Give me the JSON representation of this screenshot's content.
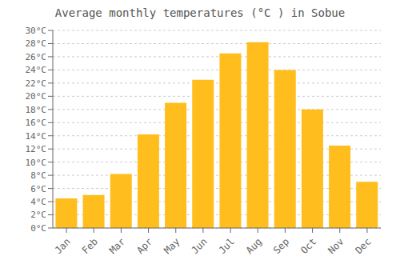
{
  "chart_data": {
    "type": "bar",
    "title": "Average monthly temperatures (°C ) in Sobue",
    "categories": [
      "Jan",
      "Feb",
      "Mar",
      "Apr",
      "May",
      "Jun",
      "Jul",
      "Aug",
      "Sep",
      "Oct",
      "Nov",
      "Dec"
    ],
    "values": [
      4.5,
      5.0,
      8.2,
      14.2,
      19.0,
      22.5,
      26.5,
      28.2,
      24.0,
      18.0,
      12.5,
      7.0
    ],
    "color": "#FFBE1E",
    "ylim": [
      0,
      30
    ],
    "yticks": [
      {
        "value": 0,
        "label": "0°C"
      },
      {
        "value": 2,
        "label": "2°C"
      },
      {
        "value": 4,
        "label": "4°C"
      },
      {
        "value": 6,
        "label": "6°C"
      },
      {
        "value": 8,
        "label": "8°C"
      },
      {
        "value": 10,
        "label": "10°C"
      },
      {
        "value": 12,
        "label": "12°C"
      },
      {
        "value": 14,
        "label": "14°C"
      },
      {
        "value": 16,
        "label": "16°C"
      },
      {
        "value": 18,
        "label": "18°C"
      },
      {
        "value": 20,
        "label": "20°C"
      },
      {
        "value": 22,
        "label": "22°C"
      },
      {
        "value": 24,
        "label": "24°C"
      },
      {
        "value": 26,
        "label": "26°C"
      },
      {
        "value": 28,
        "label": "28°C"
      },
      {
        "value": 30,
        "label": "30°C"
      }
    ],
    "grid": true
  }
}
